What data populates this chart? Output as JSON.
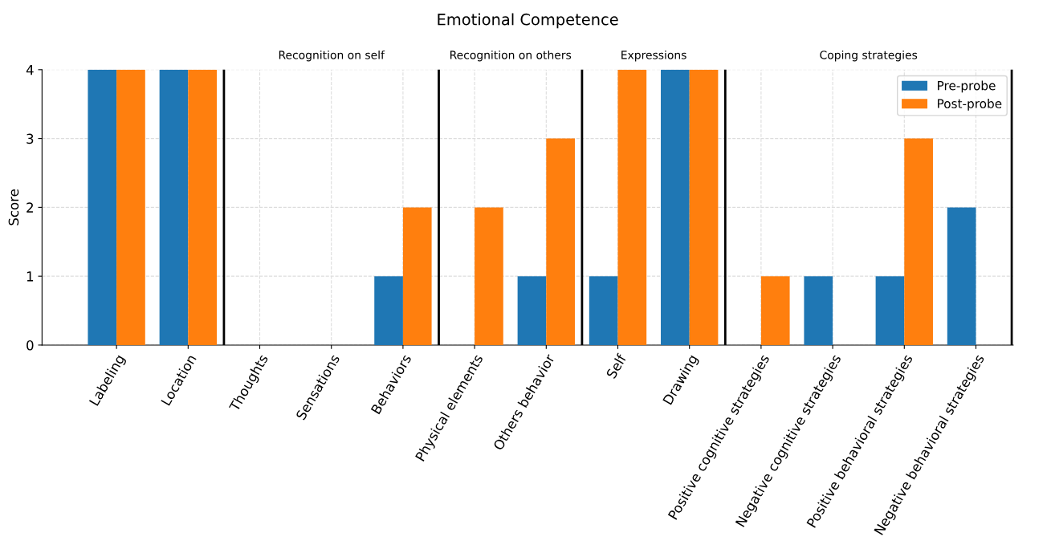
{
  "chart_data": {
    "type": "bar",
    "title": "Emotional Competence",
    "ylabel": "Score",
    "categories": [
      "Labeling",
      "Location",
      "Thoughts",
      "Sensations",
      "Behaviors",
      "Physical elements",
      "Others behavior",
      "Self",
      "Drawing",
      "Positive cognitive strategies",
      "Negative cognitive strategies",
      "Positive behavioral strategies",
      "Negative behavioral strategies"
    ],
    "series": [
      {
        "name": "Pre-probe",
        "color": "#1f77b4",
        "values": [
          4,
          4,
          0,
          0,
          1,
          0,
          1,
          1,
          4,
          0,
          1,
          1,
          2
        ]
      },
      {
        "name": "Post-probe",
        "color": "#ff7f0e",
        "values": [
          4,
          4,
          0,
          0,
          2,
          2,
          3,
          4,
          4,
          1,
          0,
          3,
          0
        ]
      }
    ],
    "annotations": [
      "Recognition on self",
      "Recognition on others",
      "Expressions",
      "Coping strategies"
    ],
    "ylim": [
      0,
      4
    ],
    "yticks": [
      0,
      1,
      2,
      3,
      4
    ],
    "grid": true,
    "legend": "top right"
  }
}
